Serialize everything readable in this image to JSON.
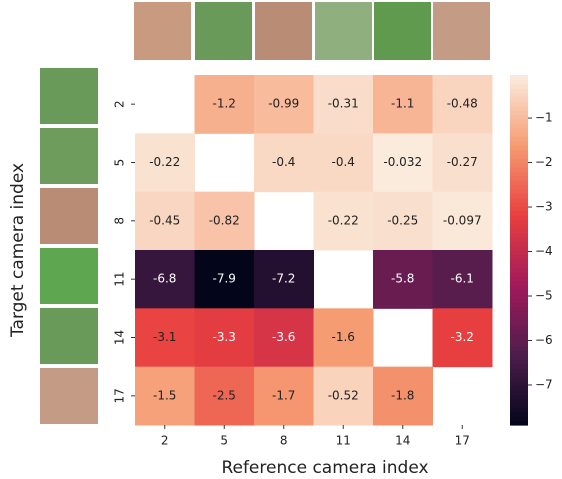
{
  "chart_data": {
    "type": "heatmap",
    "x_label": "Reference camera index",
    "y_label": "Target camera index",
    "x_categories": [
      "2",
      "5",
      "8",
      "11",
      "14",
      "17"
    ],
    "y_categories": [
      "2",
      "5",
      "8",
      "11",
      "14",
      "17"
    ],
    "values": [
      [
        null,
        -1.2,
        -0.99,
        -0.31,
        -1.1,
        -0.48
      ],
      [
        -0.22,
        null,
        -0.4,
        -0.4,
        -0.032,
        -0.27
      ],
      [
        -0.45,
        -0.82,
        null,
        -0.22,
        -0.25,
        -0.097
      ],
      [
        -6.8,
        -7.9,
        -7.2,
        null,
        -5.8,
        -6.1
      ],
      [
        -3.1,
        -3.3,
        -3.6,
        -1.6,
        null,
        -3.2
      ],
      [
        -1.5,
        -2.5,
        -1.7,
        -0.52,
        -1.8,
        null
      ]
    ],
    "clim": [
      -7.9,
      -0.032
    ],
    "colorbar_ticks": [
      {
        "value": -1,
        "label": "−1"
      },
      {
        "value": -2,
        "label": "−2"
      },
      {
        "value": -3,
        "label": "−3"
      },
      {
        "value": -4,
        "label": "−4"
      },
      {
        "value": -5,
        "label": "−5"
      },
      {
        "value": -6,
        "label": "−6"
      },
      {
        "value": -7,
        "label": "−7"
      }
    ],
    "colormap": [
      "#03051a",
      "#4c1d4b",
      "#a11a5b",
      "#e83f3f",
      "#f69c73",
      "#faebdd"
    ]
  }
}
